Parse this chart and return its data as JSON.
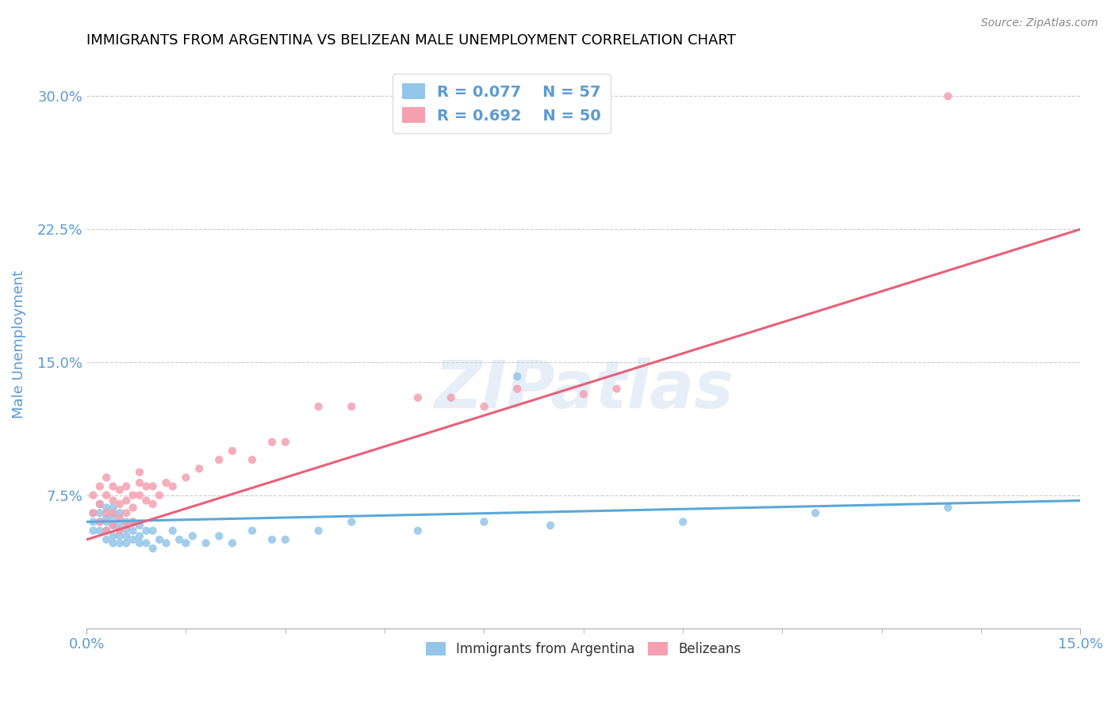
{
  "title": "IMMIGRANTS FROM ARGENTINA VS BELIZEAN MALE UNEMPLOYMENT CORRELATION CHART",
  "source": "Source: ZipAtlas.com",
  "ylabel": "Male Unemployment",
  "xlim": [
    0.0,
    0.15
  ],
  "ylim": [
    0.0,
    0.32
  ],
  "yticks": [
    0.075,
    0.15,
    0.225,
    0.3
  ],
  "ytick_labels": [
    "7.5%",
    "15.0%",
    "22.5%",
    "30.0%"
  ],
  "xtick_labels": [
    "0.0%",
    "15.0%"
  ],
  "legend_r1": "R = 0.077",
  "legend_n1": "N = 57",
  "legend_r2": "R = 0.692",
  "legend_n2": "N = 50",
  "color_argentina": "#93C6E8",
  "color_belize": "#F4A0B0",
  "color_argentina_line": "#5BA8D8",
  "color_belize_line": "#E8607A",
  "color_text": "#5B9BD5",
  "argentina_x": [
    0.001,
    0.001,
    0.001,
    0.002,
    0.002,
    0.002,
    0.002,
    0.003,
    0.003,
    0.003,
    0.003,
    0.003,
    0.004,
    0.004,
    0.004,
    0.004,
    0.004,
    0.005,
    0.005,
    0.005,
    0.005,
    0.005,
    0.006,
    0.006,
    0.006,
    0.006,
    0.007,
    0.007,
    0.007,
    0.008,
    0.008,
    0.008,
    0.009,
    0.009,
    0.01,
    0.01,
    0.011,
    0.012,
    0.013,
    0.014,
    0.015,
    0.016,
    0.018,
    0.02,
    0.022,
    0.025,
    0.028,
    0.03,
    0.035,
    0.04,
    0.05,
    0.06,
    0.065,
    0.07,
    0.09,
    0.11,
    0.13
  ],
  "argentina_y": [
    0.06,
    0.065,
    0.055,
    0.055,
    0.06,
    0.065,
    0.07,
    0.05,
    0.055,
    0.06,
    0.062,
    0.068,
    0.048,
    0.052,
    0.058,
    0.063,
    0.068,
    0.048,
    0.052,
    0.056,
    0.06,
    0.065,
    0.048,
    0.052,
    0.056,
    0.06,
    0.05,
    0.055,
    0.06,
    0.048,
    0.052,
    0.058,
    0.048,
    0.055,
    0.045,
    0.055,
    0.05,
    0.048,
    0.055,
    0.05,
    0.048,
    0.052,
    0.048,
    0.052,
    0.048,
    0.055,
    0.05,
    0.05,
    0.055,
    0.06,
    0.055,
    0.06,
    0.142,
    0.058,
    0.06,
    0.065,
    0.068
  ],
  "belize_x": [
    0.001,
    0.001,
    0.002,
    0.002,
    0.002,
    0.003,
    0.003,
    0.003,
    0.003,
    0.004,
    0.004,
    0.004,
    0.004,
    0.005,
    0.005,
    0.005,
    0.005,
    0.006,
    0.006,
    0.006,
    0.006,
    0.007,
    0.007,
    0.007,
    0.008,
    0.008,
    0.008,
    0.009,
    0.009,
    0.01,
    0.01,
    0.011,
    0.012,
    0.013,
    0.015,
    0.017,
    0.02,
    0.022,
    0.025,
    0.028,
    0.03,
    0.035,
    0.04,
    0.05,
    0.055,
    0.06,
    0.065,
    0.075,
    0.08,
    0.13
  ],
  "belize_y": [
    0.065,
    0.075,
    0.06,
    0.07,
    0.08,
    0.055,
    0.065,
    0.075,
    0.085,
    0.058,
    0.065,
    0.072,
    0.08,
    0.055,
    0.062,
    0.07,
    0.078,
    0.058,
    0.065,
    0.072,
    0.08,
    0.06,
    0.068,
    0.075,
    0.075,
    0.082,
    0.088,
    0.072,
    0.08,
    0.07,
    0.08,
    0.075,
    0.082,
    0.08,
    0.085,
    0.09,
    0.095,
    0.1,
    0.095,
    0.105,
    0.105,
    0.125,
    0.125,
    0.13,
    0.13,
    0.125,
    0.135,
    0.132,
    0.135,
    0.3
  ],
  "arg_trend_x": [
    0.0,
    0.15
  ],
  "arg_trend_y": [
    0.06,
    0.072
  ],
  "bel_trend_x": [
    0.0,
    0.15
  ],
  "bel_trend_y": [
    0.05,
    0.225
  ]
}
